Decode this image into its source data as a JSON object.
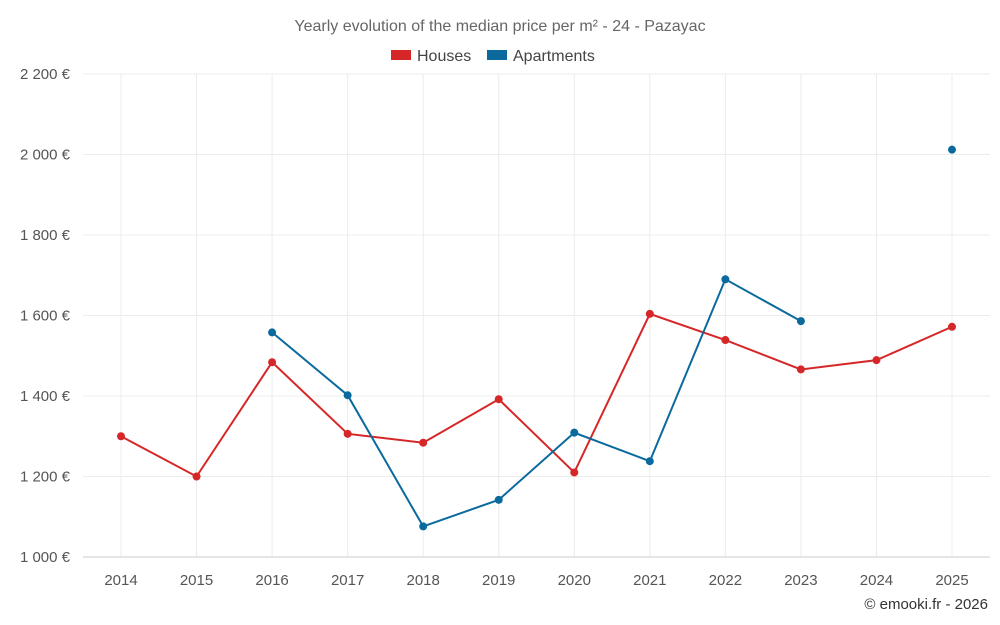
{
  "chart_data": {
    "type": "line",
    "title": "Yearly evolution of the median price per m² - 24 - Pazayac",
    "categories": [
      "2014",
      "2015",
      "2016",
      "2017",
      "2018",
      "2019",
      "2020",
      "2021",
      "2022",
      "2023",
      "2024",
      "2025"
    ],
    "ylim": [
      1000,
      2200
    ],
    "yticks": [
      1000,
      1200,
      1400,
      1600,
      1800,
      2000,
      2200
    ],
    "ytick_labels": [
      "1 000 €",
      "1 200 €",
      "1 400 €",
      "1 600 €",
      "1 800 €",
      "2 000 €",
      "2 200 €"
    ],
    "legend_position": "top-center",
    "grid": true,
    "series": [
      {
        "name": "Houses",
        "color": "#d62728",
        "values": [
          1300,
          1200,
          1484,
          1306,
          1284,
          1392,
          1210,
          1604,
          1539,
          1466,
          1489,
          1572
        ]
      },
      {
        "name": "Apartments",
        "color": "#0a6a9e",
        "values": [
          null,
          null,
          1558,
          1402,
          1076,
          1142,
          1309,
          1238,
          1690,
          1586,
          null,
          2012
        ]
      }
    ]
  },
  "credit": "© emooki.fr - 2026"
}
